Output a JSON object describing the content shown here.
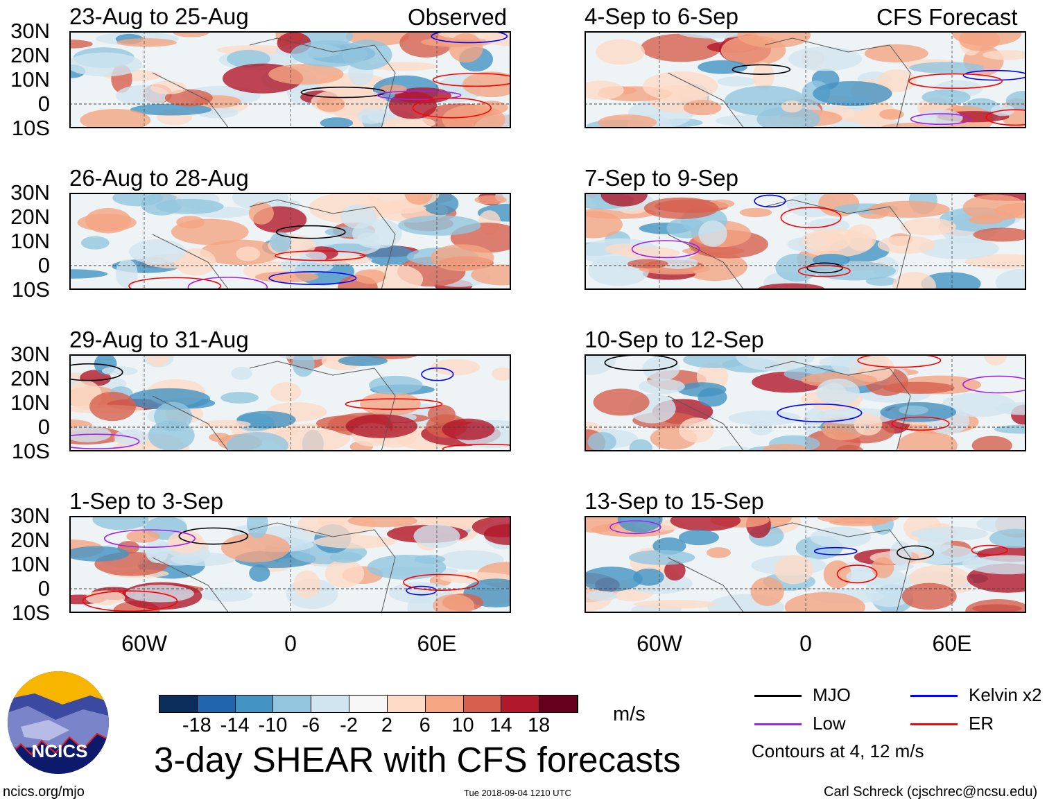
{
  "headers": {
    "left": "Observed",
    "right": "CFS Forecast"
  },
  "panels": [
    {
      "title": "23-Aug to 25-Aug",
      "column": "left",
      "row": 0
    },
    {
      "title": "26-Aug to 28-Aug",
      "column": "left",
      "row": 1
    },
    {
      "title": "29-Aug to 31-Aug",
      "column": "left",
      "row": 2
    },
    {
      "title": "1-Sep to 3-Sep",
      "column": "left",
      "row": 3
    },
    {
      "title": "4-Sep to 6-Sep",
      "column": "right",
      "row": 0
    },
    {
      "title": "7-Sep to 9-Sep",
      "column": "right",
      "row": 1
    },
    {
      "title": "10-Sep to 12-Sep",
      "column": "right",
      "row": 2
    },
    {
      "title": "13-Sep to 15-Sep",
      "column": "right",
      "row": 3
    }
  ],
  "lat_labels": [
    "30N",
    "20N",
    "10N",
    "0",
    "10S"
  ],
  "lon_labels": [
    "60W",
    "0",
    "60E"
  ],
  "colorbar": {
    "colors": [
      "#0b2d5c",
      "#2166ac",
      "#4393c3",
      "#92c5de",
      "#d1e5f0",
      "#f7f7f7",
      "#fddbc7",
      "#f4a582",
      "#d6604d",
      "#b2182b",
      "#67001f"
    ],
    "labels": [
      "-18",
      "-14",
      "-10",
      "-6",
      "-2",
      "2",
      "6",
      "10",
      "14",
      "18"
    ],
    "units": "m/s"
  },
  "title": "3-day SHEAR with CFS forecasts",
  "legend": [
    {
      "label": "MJO",
      "color": "#000000"
    },
    {
      "label": "Kelvin x2",
      "color": "#0000ff"
    },
    {
      "label": "Low",
      "color": "#a020f0"
    },
    {
      "label": "ER",
      "color": "#ff0000"
    }
  ],
  "contour_note": "Contours at 4, 12 m/s",
  "logo_text": "NCICS",
  "footer": {
    "left": "ncics.org/mjo",
    "center": "Tue 2018-09-04 1210 UTC",
    "right": "Carl Schreck (cjschrec@ncsu.edu)"
  }
}
